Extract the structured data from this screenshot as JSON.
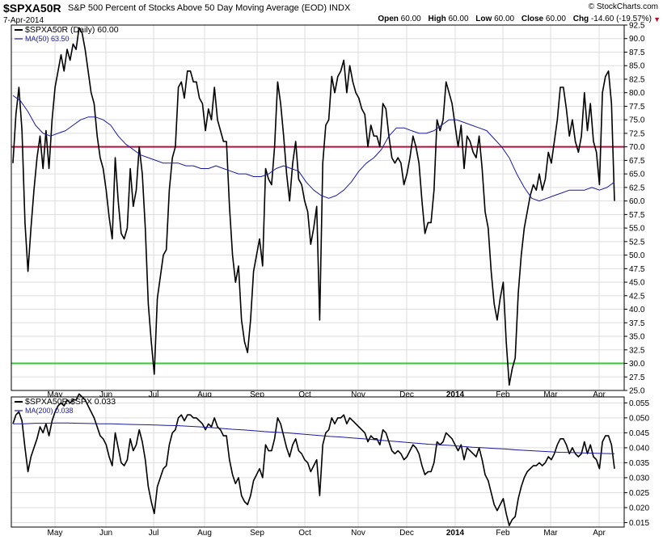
{
  "header": {
    "symbol": "$SPXA50R",
    "description": "S&P 500 Percent of Stocks Above 50 Day Moving Average (EOD)",
    "exchange": "INDX",
    "brand": "© StockCharts.com",
    "date": "7-Apr-2014",
    "open_label": "Open",
    "open_value": "60.00",
    "high_label": "High",
    "high_value": "60.00",
    "low_label": "Low",
    "low_value": "60.00",
    "close_label": "Close",
    "close_value": "60.00",
    "chg_label": "Chg",
    "chg_value": "-14.60 (-19.57%)"
  },
  "colors": {
    "price_line": "#000000",
    "ma_line": "#1a1a9c",
    "upper_ref": "#b0123c",
    "lower_ref": "#2ecc2e",
    "grid": "#dddddd",
    "negative": "#b0122a"
  },
  "chart_data": [
    {
      "type": "line",
      "legend": [
        "$SPXA50R (Daily) 60.00",
        "MA(50) 63.50"
      ],
      "ylim": [
        25,
        92.5
      ],
      "y_ticks": [
        25.0,
        27.5,
        30.0,
        32.5,
        35.0,
        37.5,
        40.0,
        42.5,
        45.0,
        47.5,
        50.0,
        52.5,
        55.0,
        57.5,
        60.0,
        62.5,
        65.0,
        67.5,
        70.0,
        72.5,
        75.0,
        77.5,
        80.0,
        82.5,
        85.0,
        87.5,
        90.0,
        92.5
      ],
      "reference_lines": [
        70,
        30
      ],
      "x_labels": [
        "May",
        "Jun",
        "Jul",
        "Aug",
        "Sep",
        "Oct",
        "Nov",
        "Dec",
        "2014",
        "Feb",
        "Mar",
        "Apr"
      ],
      "grid": true,
      "legend_position": "top-left",
      "series": [
        {
          "name": "$SPXA50R (Daily)",
          "values": [
            67,
            76,
            81,
            73,
            56,
            47,
            55,
            62,
            68,
            72,
            66,
            73,
            66,
            75,
            81,
            84,
            87,
            84,
            88,
            86,
            89,
            88,
            92,
            91,
            88,
            84,
            80,
            78,
            72,
            68,
            66,
            62,
            57,
            53,
            68,
            60,
            54,
            53,
            55,
            66,
            59,
            62,
            70,
            65,
            55,
            41,
            34,
            28,
            42,
            46,
            50,
            51,
            62,
            68,
            70,
            81,
            82,
            79,
            84,
            84,
            82,
            82,
            79,
            78,
            73,
            77,
            75,
            81,
            75,
            73,
            71,
            71,
            59,
            50,
            45,
            48,
            38,
            34,
            32,
            38,
            47,
            50,
            53,
            48,
            66,
            64,
            63,
            70,
            82,
            78,
            72,
            65,
            60,
            67,
            71,
            64,
            63,
            60,
            58,
            52,
            55,
            59,
            38,
            67,
            74,
            75,
            83,
            80,
            83,
            84,
            86,
            80,
            85,
            82,
            80,
            79,
            77,
            76,
            70,
            74,
            72,
            72,
            70,
            78,
            77,
            72,
            68,
            67,
            68,
            67,
            63,
            65,
            68,
            72,
            70,
            67,
            60,
            54,
            56,
            56,
            62,
            75,
            73,
            75,
            82,
            80,
            78,
            74,
            70,
            74,
            66,
            72,
            71,
            69,
            68,
            72,
            66,
            58,
            55,
            47,
            41,
            38,
            42,
            45,
            34,
            26,
            29,
            31,
            43,
            50,
            55,
            58,
            61,
            63,
            62,
            65,
            62,
            64,
            69,
            67,
            71,
            75,
            81,
            81,
            77,
            72,
            75,
            71,
            69,
            72,
            80,
            73,
            78,
            71,
            69,
            63,
            80,
            83,
            84,
            78,
            60
          ]
        },
        {
          "name": "MA(50)",
          "values": [
            79.5,
            78.5,
            76.5,
            74.0,
            72.5,
            72.0,
            72.5,
            73.0,
            74.0,
            75.0,
            75.5,
            75.5,
            75.0,
            74.0,
            72.0,
            70.5,
            69.5,
            68.5,
            68.0,
            67.5,
            67.0,
            67.0,
            67.0,
            66.5,
            66.5,
            66.0,
            66.0,
            66.5,
            66.0,
            65.5,
            65.0,
            65.0,
            64.5,
            64.5,
            65.0,
            66.0,
            66.5,
            66.0,
            65.5,
            63.5,
            62.0,
            61.0,
            60.5,
            61.0,
            62.0,
            63.5,
            65.5,
            67.0,
            68.0,
            69.5,
            72.0,
            73.5,
            73.5,
            73.0,
            72.5,
            72.5,
            73.0,
            74.0,
            75.0,
            75.0,
            74.5,
            74.0,
            73.5,
            73.0,
            71.5,
            70.0,
            68.0,
            65.0,
            62.5,
            60.5,
            60.0,
            60.5,
            61.0,
            61.5,
            62.0,
            62.0,
            62.0,
            62.5,
            62.0,
            62.5,
            63.5
          ]
        }
      ]
    },
    {
      "type": "line",
      "legend": [
        "$SPXA50R:$SPX 0.033",
        "MA(200) 0.038"
      ],
      "ylim": [
        0.0135,
        0.057
      ],
      "y_ticks": [
        0.015,
        0.02,
        0.025,
        0.03,
        0.035,
        0.04,
        0.045,
        0.05,
        0.055
      ],
      "x_labels": [
        "May",
        "Jun",
        "Jul",
        "Aug",
        "Sep",
        "Oct",
        "Nov",
        "Dec",
        "2014",
        "Feb",
        "Mar",
        "Apr"
      ],
      "grid": true,
      "legend_position": "top-left",
      "series": [
        {
          "name": "$SPXA50R:$SPX",
          "values": [
            0.048,
            0.051,
            0.052,
            0.049,
            0.04,
            0.032,
            0.037,
            0.04,
            0.043,
            0.047,
            0.045,
            0.048,
            0.044,
            0.049,
            0.052,
            0.054,
            0.055,
            0.054,
            0.056,
            0.055,
            0.056,
            0.056,
            0.058,
            0.057,
            0.056,
            0.054,
            0.052,
            0.05,
            0.047,
            0.044,
            0.043,
            0.041,
            0.037,
            0.034,
            0.045,
            0.04,
            0.035,
            0.034,
            0.036,
            0.043,
            0.039,
            0.041,
            0.046,
            0.042,
            0.036,
            0.027,
            0.022,
            0.018,
            0.027,
            0.03,
            0.033,
            0.034,
            0.041,
            0.045,
            0.046,
            0.05,
            0.051,
            0.049,
            0.051,
            0.051,
            0.05,
            0.05,
            0.049,
            0.048,
            0.046,
            0.048,
            0.047,
            0.05,
            0.047,
            0.046,
            0.044,
            0.044,
            0.036,
            0.031,
            0.028,
            0.03,
            0.024,
            0.022,
            0.021,
            0.024,
            0.029,
            0.031,
            0.033,
            0.03,
            0.041,
            0.039,
            0.039,
            0.043,
            0.05,
            0.048,
            0.044,
            0.04,
            0.037,
            0.041,
            0.043,
            0.039,
            0.038,
            0.036,
            0.035,
            0.032,
            0.034,
            0.036,
            0.024,
            0.041,
            0.045,
            0.046,
            0.05,
            0.048,
            0.05,
            0.05,
            0.051,
            0.048,
            0.05,
            0.049,
            0.048,
            0.047,
            0.046,
            0.045,
            0.042,
            0.044,
            0.043,
            0.043,
            0.041,
            0.046,
            0.045,
            0.042,
            0.039,
            0.038,
            0.039,
            0.038,
            0.036,
            0.037,
            0.039,
            0.041,
            0.04,
            0.038,
            0.034,
            0.031,
            0.032,
            0.032,
            0.035,
            0.042,
            0.041,
            0.042,
            0.045,
            0.044,
            0.043,
            0.041,
            0.039,
            0.041,
            0.036,
            0.04,
            0.039,
            0.038,
            0.037,
            0.04,
            0.036,
            0.031,
            0.029,
            0.025,
            0.021,
            0.019,
            0.021,
            0.023,
            0.018,
            0.014,
            0.016,
            0.017,
            0.023,
            0.027,
            0.03,
            0.032,
            0.033,
            0.034,
            0.034,
            0.035,
            0.034,
            0.035,
            0.037,
            0.036,
            0.038,
            0.041,
            0.043,
            0.043,
            0.041,
            0.038,
            0.04,
            0.038,
            0.037,
            0.038,
            0.042,
            0.038,
            0.041,
            0.037,
            0.036,
            0.033,
            0.042,
            0.044,
            0.044,
            0.041,
            0.033
          ]
        },
        {
          "name": "MA(200)",
          "values": [
            0.048,
            0.048,
            0.0482,
            0.0482,
            0.0483,
            0.0483,
            0.0482,
            0.0481,
            0.048,
            0.048,
            0.0479,
            0.0478,
            0.0477,
            0.0476,
            0.0475,
            0.0474,
            0.0472,
            0.047,
            0.0468,
            0.0465,
            0.0462,
            0.046,
            0.0457,
            0.0454,
            0.0452,
            0.045,
            0.0447,
            0.0444,
            0.0441,
            0.0438,
            0.0436,
            0.0433,
            0.043,
            0.0427,
            0.0424,
            0.0421,
            0.0418,
            0.0415,
            0.0412,
            0.041,
            0.0408,
            0.0405,
            0.0402,
            0.04,
            0.0398,
            0.0396,
            0.0393,
            0.0391,
            0.0389,
            0.0387,
            0.0385,
            0.0384,
            0.0383,
            0.0382,
            0.0381,
            0.038
          ]
        }
      ]
    }
  ]
}
